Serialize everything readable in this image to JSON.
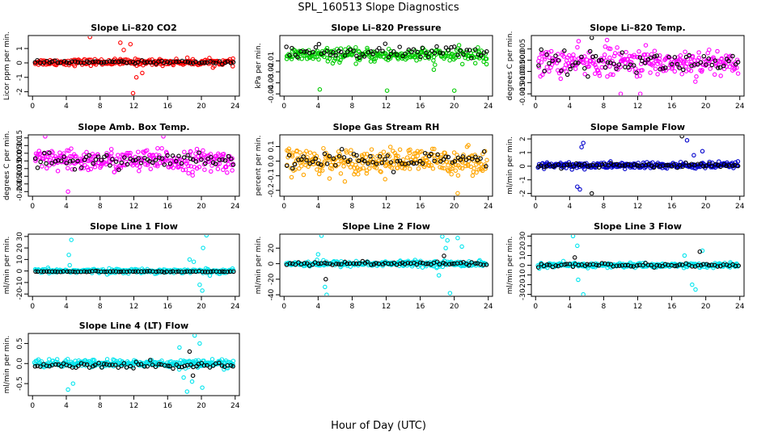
{
  "figure": {
    "title": "SPL_160513  Slope Diagnostics",
    "xlabel": "Hour of Day (UTC)"
  },
  "chart_data": [
    {
      "type": "scatter",
      "title": "Slope Li–820 CO2",
      "ylabel": "Licor ppm per min.",
      "xticks": [
        0,
        4,
        8,
        12,
        16,
        20,
        24
      ],
      "xlim": [
        -0.5,
        24.5
      ],
      "ylim": [
        -2.3,
        1.9
      ],
      "yticks": [
        -2,
        -1,
        0,
        1
      ],
      "yticklabels": [
        "-2",
        "-1",
        "0",
        "1"
      ],
      "series": [
        {
          "color": "#ff0000",
          "center": 0.05,
          "spread": 0.18,
          "count": 260,
          "outliers": [
            [
              6.8,
              1.8
            ],
            [
              10.4,
              1.4
            ],
            [
              11.6,
              1.3
            ],
            [
              11.9,
              -2.1
            ],
            [
              12.3,
              -1.0
            ],
            [
              13.0,
              -0.7
            ],
            [
              10.8,
              0.9
            ]
          ]
        },
        {
          "color": "#000000",
          "center": 0.05,
          "spread": 0.08,
          "count": 70,
          "outliers": []
        }
      ]
    },
    {
      "type": "scatter",
      "title": "Slope Li–820 Pressure",
      "ylabel": "kPa per min.",
      "xticks": [
        0,
        4,
        8,
        12,
        16,
        20,
        24
      ],
      "xlim": [
        -0.5,
        24.5
      ],
      "ylim": [
        -0.042,
        0.013
      ],
      "yticks": [
        -0.04,
        -0.03,
        -0.02,
        -0.01
      ],
      "yticklabels": [
        "-0.04",
        "-0.03",
        "-0.02",
        "-0.01"
      ],
      "series": [
        {
          "color": "#00cc00",
          "center": -0.005,
          "spread": 0.005,
          "count": 260,
          "outliers": [
            [
              4.2,
              -0.036
            ],
            [
              12.1,
              -0.037
            ],
            [
              20.0,
              -0.037
            ],
            [
              17.6,
              -0.018
            ],
            [
              23.8,
              -0.013
            ]
          ]
        },
        {
          "color": "#000000",
          "center": -0.002,
          "spread": 0.005,
          "count": 70,
          "outliers": []
        }
      ]
    },
    {
      "type": "scatter",
      "title": "Slope Li–820 Temp.",
      "ylabel": "degrees C per min.",
      "xticks": [
        0,
        4,
        8,
        12,
        16,
        20,
        24
      ],
      "xlim": [
        -0.5,
        24.5
      ],
      "ylim": [
        -0.016,
        0.011
      ],
      "yticks": [
        -0.015,
        -0.01,
        -0.005,
        0.0,
        0.005
      ],
      "yticklabels": [
        "-0.015",
        "-0.010",
        "-0.005",
        "0.000",
        "0.005"
      ],
      "series": [
        {
          "color": "#ff00ff",
          "center": -0.001,
          "spread": 0.005,
          "count": 280,
          "outliers": [
            [
              10.0,
              -0.015
            ],
            [
              12.3,
              -0.015
            ],
            [
              8.4,
              0.009
            ]
          ]
        },
        {
          "color": "#000000",
          "center": -0.001,
          "spread": 0.004,
          "count": 70,
          "outliers": [
            [
              6.6,
              0.01
            ]
          ]
        }
      ]
    },
    {
      "type": "scatter",
      "title": "Slope Amb. Box Temp.",
      "ylabel": "degrees C per min.",
      "xticks": [
        0,
        4,
        8,
        12,
        16,
        20,
        24
      ],
      "xlim": [
        -0.5,
        24.5
      ],
      "ylim": [
        -0.23,
        0.17
      ],
      "yticks": [
        -0.2,
        -0.15,
        -0.1,
        -0.05,
        0.0,
        0.05,
        0.1,
        0.15
      ],
      "yticklabels": [
        "-0.20",
        "-0.15",
        "-0.10",
        "-0.05",
        "0.00",
        "0.05",
        "0.10",
        "0.15"
      ],
      "series": [
        {
          "color": "#ff00ff",
          "center": 0.0,
          "spread": 0.06,
          "count": 280,
          "outliers": [
            [
              4.2,
              -0.2
            ],
            [
              1.5,
              0.16
            ],
            [
              15.5,
              0.16
            ]
          ]
        },
        {
          "color": "#000000",
          "center": 0.0,
          "spread": 0.04,
          "count": 70,
          "outliers": []
        }
      ]
    },
    {
      "type": "scatter",
      "title": "Slope Gas Stream RH",
      "ylabel": "percent per min.",
      "xticks": [
        0,
        4,
        8,
        12,
        16,
        20,
        24
      ],
      "xlim": [
        -0.5,
        24.5
      ],
      "ylim": [
        -0.24,
        0.18
      ],
      "yticks": [
        -0.2,
        -0.1,
        0.0,
        0.1
      ],
      "yticklabels": [
        "-0.2",
        "-0.1",
        "0.0",
        "0.1"
      ],
      "series": [
        {
          "color": "#ffa500",
          "center": 0.0,
          "spread": 0.07,
          "count": 300,
          "outliers": [
            [
              20.4,
              -0.22
            ]
          ]
        },
        {
          "color": "#000000",
          "center": 0.0,
          "spread": 0.05,
          "count": 70,
          "outliers": []
        }
      ]
    },
    {
      "type": "scatter",
      "title": "Slope Sample Flow",
      "ylabel": "ml/min per min.",
      "xticks": [
        0,
        4,
        8,
        12,
        16,
        20,
        24
      ],
      "xlim": [
        -0.5,
        24.5
      ],
      "ylim": [
        -2.2,
        2.3
      ],
      "yticks": [
        -2,
        -1,
        0,
        1,
        2
      ],
      "yticklabels": [
        "-2",
        "-1",
        "0",
        "1",
        "2"
      ],
      "series": [
        {
          "color": "#0000cc",
          "center": 0.05,
          "spread": 0.2,
          "count": 280,
          "outliers": [
            [
              4.9,
              -1.5
            ],
            [
              5.2,
              -1.7
            ],
            [
              5.6,
              1.7
            ],
            [
              5.4,
              1.4
            ],
            [
              17.8,
              1.9
            ],
            [
              19.6,
              1.1
            ],
            [
              18.6,
              0.8
            ]
          ]
        },
        {
          "color": "#000000",
          "center": 0.05,
          "spread": 0.12,
          "count": 70,
          "outliers": [
            [
              6.6,
              -2.0
            ],
            [
              17.2,
              2.2
            ]
          ]
        }
      ]
    },
    {
      "type": "scatter",
      "title": "Slope Line 1 Flow",
      "ylabel": "ml/min per min.",
      "xticks": [
        0,
        4,
        8,
        12,
        16,
        20,
        24
      ],
      "xlim": [
        -0.5,
        24.5
      ],
      "ylim": [
        -22,
        32
      ],
      "yticks": [
        -20,
        -10,
        0,
        10,
        20,
        30
      ],
      "yticklabels": [
        "-20",
        "-10",
        "0",
        "10",
        "20",
        "30"
      ],
      "series": [
        {
          "color": "#00e5ee",
          "center": 0.0,
          "spread": 1.5,
          "count": 280,
          "outliers": [
            [
              4.6,
              27
            ],
            [
              4.3,
              14
            ],
            [
              18.6,
              10
            ],
            [
              19.1,
              8
            ],
            [
              20.2,
              20
            ],
            [
              20.6,
              31
            ],
            [
              19.8,
              -12
            ],
            [
              20.1,
              -17
            ],
            [
              21.0,
              -4
            ],
            [
              4.4,
              5
            ]
          ]
        },
        {
          "color": "#000000",
          "center": -0.5,
          "spread": 0.3,
          "count": 70,
          "outliers": []
        }
      ]
    },
    {
      "type": "scatter",
      "title": "Slope Line 2 Flow",
      "ylabel": "ml/min per min.",
      "xticks": [
        0,
        4,
        8,
        12,
        16,
        20,
        24
      ],
      "xlim": [
        -0.5,
        24.5
      ],
      "ylim": [
        -42,
        38
      ],
      "yticks": [
        -40,
        -20,
        0,
        20
      ],
      "yticklabels": [
        "-40",
        "-20",
        "0",
        "20"
      ],
      "series": [
        {
          "color": "#00e5ee",
          "center": 0.0,
          "spread": 3,
          "count": 280,
          "outliers": [
            [
              4.4,
              36
            ],
            [
              4.0,
              12
            ],
            [
              4.8,
              -30
            ],
            [
              5.0,
              -40
            ],
            [
              18.6,
              35
            ],
            [
              19.2,
              30
            ],
            [
              20.4,
              33
            ],
            [
              20.9,
              22
            ],
            [
              19.5,
              -38
            ],
            [
              18.2,
              -15
            ],
            [
              19.0,
              20
            ]
          ]
        },
        {
          "color": "#000000",
          "center": 0.0,
          "spread": 2,
          "count": 70,
          "outliers": [
            [
              4.9,
              -20
            ],
            [
              18.8,
              10
            ]
          ]
        }
      ]
    },
    {
      "type": "scatter",
      "title": "Slope Line 3 Flow",
      "ylabel": "ml/min per min.",
      "xticks": [
        0,
        4,
        8,
        12,
        16,
        20,
        24
      ],
      "xlim": [
        -0.5,
        24.5
      ],
      "ylim": [
        -32,
        32
      ],
      "yticks": [
        -30,
        -20,
        -10,
        0,
        10,
        20,
        30
      ],
      "yticklabels": [
        "-30",
        "-20",
        "-10",
        "0",
        "10",
        "20",
        "30"
      ],
      "series": [
        {
          "color": "#00e5ee",
          "center": 0.0,
          "spread": 2,
          "count": 280,
          "outliers": [
            [
              4.4,
              30
            ],
            [
              4.9,
              20
            ],
            [
              5.0,
              -15
            ],
            [
              5.6,
              -30
            ],
            [
              17.5,
              10
            ],
            [
              18.4,
              -20
            ],
            [
              18.8,
              -25
            ],
            [
              19.6,
              15
            ]
          ]
        },
        {
          "color": "#000000",
          "center": 0.0,
          "spread": 1.5,
          "count": 70,
          "outliers": [
            [
              19.3,
              14
            ],
            [
              4.6,
              8
            ]
          ]
        }
      ]
    },
    {
      "type": "scatter",
      "title": "Slope Line 4 (LT) Flow",
      "ylabel": "ml/min per min.",
      "xticks": [
        0,
        4,
        8,
        12,
        16,
        20,
        24
      ],
      "xlim": [
        -0.5,
        24.5
      ],
      "ylim": [
        -0.8,
        0.75
      ],
      "yticks": [
        -0.5,
        0.0,
        0.5
      ],
      "yticklabels": [
        "-0.5",
        "0.0",
        "0.5"
      ],
      "series": [
        {
          "color": "#00e5ee",
          "center": 0.0,
          "spread": 0.08,
          "count": 280,
          "outliers": [
            [
              4.2,
              -0.65
            ],
            [
              4.8,
              -0.5
            ],
            [
              17.4,
              0.4
            ],
            [
              18.3,
              -0.7
            ],
            [
              19.2,
              0.7
            ],
            [
              19.8,
              0.5
            ],
            [
              20.1,
              -0.6
            ],
            [
              18.9,
              -0.45
            ],
            [
              17.9,
              -0.35
            ]
          ]
        },
        {
          "color": "#000000",
          "center": -0.05,
          "spread": 0.06,
          "count": 70,
          "outliers": [
            [
              18.6,
              0.3
            ],
            [
              19.0,
              -0.3
            ]
          ]
        }
      ]
    }
  ]
}
